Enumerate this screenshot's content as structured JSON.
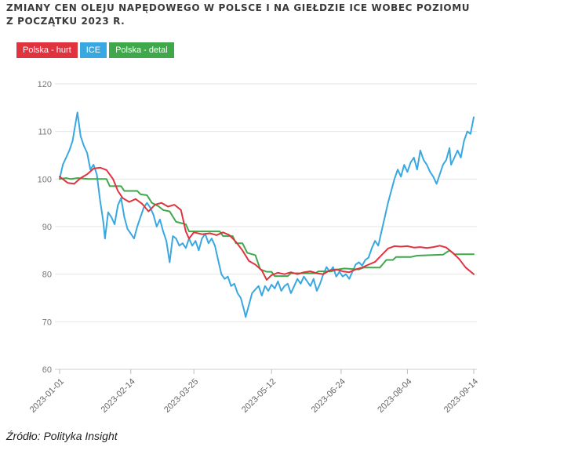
{
  "title_lines": [
    "Zmiany cen oleju napędowego w Polsce i na giełdzie ICE wobec poziomu",
    "z początku 2023 r."
  ],
  "source": "Źródło: Polityka Insight",
  "chart_data": {
    "type": "line",
    "title": "Zmiany cen oleju napędowego w Polsce i na giełdzie ICE wobec poziomu z początku 2023 r.",
    "xlabel": "",
    "ylabel": "",
    "x_ticks": [
      "2023-01-01",
      "2023-02-14",
      "2023-03-25",
      "2023-05-12",
      "2023-06-24",
      "2023-08-04",
      "2023-09-14"
    ],
    "xlim": [
      "2023-01-01",
      "2023-09-14"
    ],
    "ylim": [
      60,
      120
    ],
    "y_ticks": [
      60,
      70,
      80,
      90,
      100,
      110,
      120
    ],
    "grid": "horizontal",
    "legend": "top-left",
    "series": [
      {
        "name": "Polska - hurt",
        "color": "#e03340",
        "points": [
          [
            "2023-01-01",
            100.5
          ],
          [
            "2023-01-06",
            99.2
          ],
          [
            "2023-01-10",
            99.0
          ],
          [
            "2023-01-14",
            100.2
          ],
          [
            "2023-01-18",
            101.0
          ],
          [
            "2023-01-22",
            102.2
          ],
          [
            "2023-01-26",
            102.4
          ],
          [
            "2023-01-30",
            101.9
          ],
          [
            "2023-02-03",
            100.0
          ],
          [
            "2023-02-06",
            97.5
          ],
          [
            "2023-02-09",
            96.0
          ],
          [
            "2023-02-13",
            95.2
          ],
          [
            "2023-02-17",
            95.8
          ],
          [
            "2023-02-21",
            94.8
          ],
          [
            "2023-02-25",
            93.2
          ],
          [
            "2023-03-01",
            94.6
          ],
          [
            "2023-03-05",
            95.0
          ],
          [
            "2023-03-09",
            94.2
          ],
          [
            "2023-03-13",
            94.6
          ],
          [
            "2023-03-17",
            93.5
          ],
          [
            "2023-03-20",
            89.0
          ],
          [
            "2023-03-22",
            87.5
          ],
          [
            "2023-03-25",
            88.8
          ],
          [
            "2023-03-30",
            88.4
          ],
          [
            "2023-04-04",
            88.6
          ],
          [
            "2023-04-08",
            88.2
          ],
          [
            "2023-04-12",
            88.8
          ],
          [
            "2023-04-16",
            88.2
          ],
          [
            "2023-04-20",
            86.8
          ],
          [
            "2023-04-24",
            85.0
          ],
          [
            "2023-04-28",
            82.8
          ],
          [
            "2023-05-02",
            82.0
          ],
          [
            "2023-05-06",
            80.8
          ],
          [
            "2023-05-09",
            78.8
          ],
          [
            "2023-05-12",
            79.8
          ],
          [
            "2023-05-16",
            80.3
          ],
          [
            "2023-05-20",
            80.0
          ],
          [
            "2023-05-24",
            80.4
          ],
          [
            "2023-05-28",
            80.0
          ],
          [
            "2023-06-01",
            80.4
          ],
          [
            "2023-06-05",
            80.6
          ],
          [
            "2023-06-09",
            80.2
          ],
          [
            "2023-06-13",
            80.0
          ],
          [
            "2023-06-17",
            80.8
          ],
          [
            "2023-06-21",
            81.0
          ],
          [
            "2023-06-25",
            80.6
          ],
          [
            "2023-06-29",
            80.4
          ],
          [
            "2023-07-03",
            81.0
          ],
          [
            "2023-07-07",
            81.4
          ],
          [
            "2023-07-11",
            82.0
          ],
          [
            "2023-07-15",
            82.6
          ],
          [
            "2023-07-19",
            84.0
          ],
          [
            "2023-07-23",
            85.4
          ],
          [
            "2023-07-27",
            85.9
          ],
          [
            "2023-07-31",
            85.8
          ],
          [
            "2023-08-04",
            85.9
          ],
          [
            "2023-08-08",
            85.6
          ],
          [
            "2023-08-12",
            85.7
          ],
          [
            "2023-08-16",
            85.5
          ],
          [
            "2023-08-20",
            85.7
          ],
          [
            "2023-08-24",
            86.0
          ],
          [
            "2023-08-28",
            85.6
          ],
          [
            "2023-09-01",
            84.5
          ],
          [
            "2023-09-05",
            83.2
          ],
          [
            "2023-09-09",
            81.4
          ],
          [
            "2023-09-14",
            80.0
          ]
        ]
      },
      {
        "name": "ICE",
        "color": "#39a8e0",
        "points": [
          [
            "2023-01-01",
            100.0
          ],
          [
            "2023-01-03",
            103.0
          ],
          [
            "2023-01-05",
            104.5
          ],
          [
            "2023-01-07",
            106.0
          ],
          [
            "2023-01-09",
            108.0
          ],
          [
            "2023-01-11",
            112.0
          ],
          [
            "2023-01-12",
            114.0
          ],
          [
            "2023-01-14",
            109.0
          ],
          [
            "2023-01-16",
            107.0
          ],
          [
            "2023-01-18",
            105.5
          ],
          [
            "2023-01-20",
            102.0
          ],
          [
            "2023-01-22",
            103.0
          ],
          [
            "2023-01-24",
            101.0
          ],
          [
            "2023-01-26",
            95.5
          ],
          [
            "2023-01-28",
            91.0
          ],
          [
            "2023-01-29",
            87.5
          ],
          [
            "2023-01-31",
            93.0
          ],
          [
            "2023-02-02",
            92.0
          ],
          [
            "2023-02-04",
            90.5
          ],
          [
            "2023-02-06",
            94.5
          ],
          [
            "2023-02-08",
            96.0
          ],
          [
            "2023-02-10",
            92.0
          ],
          [
            "2023-02-12",
            89.5
          ],
          [
            "2023-02-14",
            88.5
          ],
          [
            "2023-02-16",
            87.5
          ],
          [
            "2023-02-18",
            90.0
          ],
          [
            "2023-02-20",
            92.0
          ],
          [
            "2023-02-22",
            94.0
          ],
          [
            "2023-02-24",
            95.0
          ],
          [
            "2023-02-26",
            94.0
          ],
          [
            "2023-02-28",
            92.5
          ],
          [
            "2023-03-02",
            90.0
          ],
          [
            "2023-03-04",
            91.5
          ],
          [
            "2023-03-06",
            89.0
          ],
          [
            "2023-03-08",
            87.0
          ],
          [
            "2023-03-10",
            82.5
          ],
          [
            "2023-03-12",
            88.0
          ],
          [
            "2023-03-14",
            87.5
          ],
          [
            "2023-03-16",
            86.0
          ],
          [
            "2023-03-18",
            86.5
          ],
          [
            "2023-03-20",
            85.5
          ],
          [
            "2023-03-22",
            87.5
          ],
          [
            "2023-03-24",
            86.0
          ],
          [
            "2023-03-26",
            87.0
          ],
          [
            "2023-03-28",
            85.0
          ],
          [
            "2023-03-30",
            87.5
          ],
          [
            "2023-04-01",
            88.5
          ],
          [
            "2023-04-03",
            86.5
          ],
          [
            "2023-04-05",
            87.5
          ],
          [
            "2023-04-07",
            86.0
          ],
          [
            "2023-04-09",
            83.0
          ],
          [
            "2023-04-11",
            80.0
          ],
          [
            "2023-04-13",
            79.0
          ],
          [
            "2023-04-15",
            79.5
          ],
          [
            "2023-04-17",
            77.5
          ],
          [
            "2023-04-19",
            78.0
          ],
          [
            "2023-04-21",
            76.0
          ],
          [
            "2023-04-23",
            75.0
          ],
          [
            "2023-04-25",
            72.5
          ],
          [
            "2023-04-26",
            71.0
          ],
          [
            "2023-04-28",
            73.5
          ],
          [
            "2023-04-30",
            76.0
          ],
          [
            "2023-05-02",
            76.8
          ],
          [
            "2023-05-04",
            77.5
          ],
          [
            "2023-05-06",
            75.5
          ],
          [
            "2023-05-08",
            77.5
          ],
          [
            "2023-05-10",
            76.5
          ],
          [
            "2023-05-12",
            77.8
          ],
          [
            "2023-05-14",
            77.0
          ],
          [
            "2023-05-16",
            78.5
          ],
          [
            "2023-05-18",
            76.5
          ],
          [
            "2023-05-20",
            77.5
          ],
          [
            "2023-05-22",
            78.0
          ],
          [
            "2023-05-24",
            76.0
          ],
          [
            "2023-05-26",
            77.5
          ],
          [
            "2023-05-28",
            79.0
          ],
          [
            "2023-05-30",
            78.0
          ],
          [
            "2023-06-01",
            79.5
          ],
          [
            "2023-06-03",
            78.5
          ],
          [
            "2023-06-05",
            77.5
          ],
          [
            "2023-06-07",
            79.0
          ],
          [
            "2023-06-09",
            76.5
          ],
          [
            "2023-06-11",
            78.0
          ],
          [
            "2023-06-13",
            80.0
          ],
          [
            "2023-06-15",
            81.5
          ],
          [
            "2023-06-17",
            80.5
          ],
          [
            "2023-06-19",
            81.5
          ],
          [
            "2023-06-21",
            79.5
          ],
          [
            "2023-06-23",
            80.5
          ],
          [
            "2023-06-25",
            79.5
          ],
          [
            "2023-06-27",
            80.0
          ],
          [
            "2023-06-29",
            79.0
          ],
          [
            "2023-07-01",
            80.5
          ],
          [
            "2023-07-03",
            82.0
          ],
          [
            "2023-07-05",
            82.5
          ],
          [
            "2023-07-07",
            81.8
          ],
          [
            "2023-07-09",
            83.0
          ],
          [
            "2023-07-11",
            83.5
          ],
          [
            "2023-07-13",
            85.5
          ],
          [
            "2023-07-15",
            87.0
          ],
          [
            "2023-07-17",
            86.0
          ],
          [
            "2023-07-19",
            89.0
          ],
          [
            "2023-07-21",
            92.0
          ],
          [
            "2023-07-23",
            95.0
          ],
          [
            "2023-07-25",
            97.5
          ],
          [
            "2023-07-27",
            100.0
          ],
          [
            "2023-07-29",
            102.0
          ],
          [
            "2023-07-31",
            100.5
          ],
          [
            "2023-08-02",
            103.0
          ],
          [
            "2023-08-04",
            101.5
          ],
          [
            "2023-08-06",
            103.5
          ],
          [
            "2023-08-08",
            104.5
          ],
          [
            "2023-08-10",
            102.0
          ],
          [
            "2023-08-12",
            106.0
          ],
          [
            "2023-08-14",
            104.0
          ],
          [
            "2023-08-16",
            103.0
          ],
          [
            "2023-08-18",
            101.5
          ],
          [
            "2023-08-20",
            100.5
          ],
          [
            "2023-08-22",
            99.0
          ],
          [
            "2023-08-24",
            101.0
          ],
          [
            "2023-08-26",
            103.0
          ],
          [
            "2023-08-28",
            104.0
          ],
          [
            "2023-08-30",
            106.5
          ],
          [
            "2023-08-31",
            103.0
          ],
          [
            "2023-09-02",
            104.5
          ],
          [
            "2023-09-04",
            106.0
          ],
          [
            "2023-09-06",
            104.5
          ],
          [
            "2023-09-08",
            108.0
          ],
          [
            "2023-09-10",
            110.0
          ],
          [
            "2023-09-12",
            109.5
          ],
          [
            "2023-09-14",
            113.0
          ]
        ]
      },
      {
        "name": "Polska - detal",
        "color": "#3ea84a",
        "points": [
          [
            "2023-01-01",
            100.0
          ],
          [
            "2023-01-05",
            100.2
          ],
          [
            "2023-01-08",
            100.0
          ],
          [
            "2023-01-12",
            100.2
          ],
          [
            "2023-01-19",
            100.0
          ],
          [
            "2023-01-30",
            100.0
          ],
          [
            "2023-02-01",
            98.5
          ],
          [
            "2023-02-08",
            98.5
          ],
          [
            "2023-02-10",
            97.5
          ],
          [
            "2023-02-18",
            97.5
          ],
          [
            "2023-02-20",
            96.8
          ],
          [
            "2023-02-24",
            96.6
          ],
          [
            "2023-02-27",
            95.0
          ],
          [
            "2023-03-03",
            94.3
          ],
          [
            "2023-03-06",
            93.5
          ],
          [
            "2023-03-10",
            93.2
          ],
          [
            "2023-03-14",
            91.0
          ],
          [
            "2023-03-20",
            90.5
          ],
          [
            "2023-03-22",
            89.0
          ],
          [
            "2023-04-10",
            89.0
          ],
          [
            "2023-04-12",
            88.0
          ],
          [
            "2023-04-18",
            88.0
          ],
          [
            "2023-04-20",
            86.5
          ],
          [
            "2023-04-24",
            86.5
          ],
          [
            "2023-04-27",
            84.5
          ],
          [
            "2023-05-02",
            84.0
          ],
          [
            "2023-05-05",
            81.0
          ],
          [
            "2023-05-09",
            80.5
          ],
          [
            "2023-05-12",
            80.5
          ],
          [
            "2023-05-14",
            79.6
          ],
          [
            "2023-05-22",
            79.6
          ],
          [
            "2023-05-24",
            80.2
          ],
          [
            "2023-06-08",
            80.2
          ],
          [
            "2023-06-10",
            80.6
          ],
          [
            "2023-06-18",
            80.6
          ],
          [
            "2023-06-22",
            81.0
          ],
          [
            "2023-06-26",
            81.2
          ],
          [
            "2023-07-05",
            81.0
          ],
          [
            "2023-07-08",
            81.4
          ],
          [
            "2023-07-18",
            81.4
          ],
          [
            "2023-07-22",
            83.0
          ],
          [
            "2023-07-26",
            83.0
          ],
          [
            "2023-07-28",
            83.6
          ],
          [
            "2023-08-06",
            83.6
          ],
          [
            "2023-08-10",
            83.9
          ],
          [
            "2023-08-18",
            84.0
          ],
          [
            "2023-08-26",
            84.1
          ],
          [
            "2023-08-30",
            85.0
          ],
          [
            "2023-09-02",
            84.2
          ],
          [
            "2023-09-14",
            84.2
          ]
        ]
      }
    ]
  }
}
